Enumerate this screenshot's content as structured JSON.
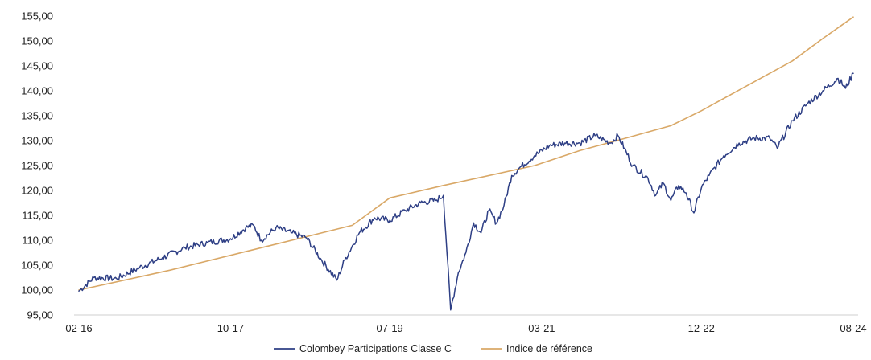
{
  "chart_data": {
    "type": "line",
    "title": "",
    "xlabel": "",
    "ylabel": "",
    "x_range": [
      "02-16",
      "08-24"
    ],
    "x_ticks": [
      "02-16",
      "10-17",
      "07-19",
      "03-21",
      "12-22",
      "08-24"
    ],
    "ylim": [
      95,
      155
    ],
    "y_ticks": [
      "95,00",
      "100,00",
      "105,00",
      "110,00",
      "115,00",
      "120,00",
      "125,00",
      "130,00",
      "135,00",
      "140,00",
      "145,00",
      "150,00",
      "155,00"
    ],
    "grid": false,
    "legend_position": "bottom-center",
    "series": [
      {
        "name": "Colombey Participations Classe C",
        "color": "#2e3f85",
        "x": [
          "2016-02",
          "2016-04",
          "2016-07",
          "2016-10",
          "2017-01",
          "2017-04",
          "2017-07",
          "2017-10",
          "2017-12",
          "2018-01",
          "2018-02",
          "2018-04",
          "2018-06",
          "2018-08",
          "2018-10",
          "2018-12",
          "2019-01",
          "2019-03",
          "2019-05",
          "2019-07",
          "2019-09",
          "2019-11",
          "2020-01",
          "2020-02",
          "2020-03",
          "2020-04",
          "2020-05",
          "2020-06",
          "2020-07",
          "2020-08",
          "2020-09",
          "2020-10",
          "2020-11",
          "2020-12",
          "2021-02",
          "2021-04",
          "2021-06",
          "2021-08",
          "2021-10",
          "2021-12",
          "2022-01",
          "2022-03",
          "2022-05",
          "2022-06",
          "2022-07",
          "2022-08",
          "2022-09",
          "2022-10",
          "2022-11",
          "2022-12",
          "2023-01",
          "2023-03",
          "2023-05",
          "2023-07",
          "2023-09",
          "2023-10",
          "2023-12",
          "2024-02",
          "2024-04",
          "2024-06",
          "2024-07",
          "2024-08"
        ],
        "values": [
          99.8,
          102.5,
          102.3,
          104.5,
          106.5,
          108.5,
          109.5,
          110.3,
          112.5,
          113.0,
          110.0,
          112.5,
          111.5,
          110.5,
          106.0,
          102.0,
          106.0,
          111.5,
          114.5,
          114.0,
          116.0,
          117.5,
          118.0,
          119.0,
          96.0,
          103.5,
          107.5,
          113.5,
          111.5,
          116.0,
          113.5,
          117.0,
          123.0,
          124.5,
          127.0,
          129.0,
          129.5,
          129.5,
          131.0,
          129.5,
          131.0,
          125.0,
          122.5,
          119.0,
          121.5,
          118.0,
          121.0,
          119.5,
          115.5,
          120.5,
          123.0,
          127.0,
          129.5,
          130.5,
          130.5,
          128.5,
          134.0,
          137.5,
          140.0,
          142.5,
          140.5,
          143.5
        ]
      },
      {
        "name": "Indice de référence",
        "color": "#d9a867",
        "x": [
          "2016-02",
          "2017-02",
          "2018-02",
          "2019-02",
          "2019-07",
          "2020-02",
          "2021-02",
          "2021-08",
          "2022-02",
          "2022-08",
          "2022-12",
          "2023-06",
          "2023-12",
          "2024-04",
          "2024-08"
        ],
        "values": [
          100.0,
          104.0,
          108.5,
          113.0,
          118.5,
          121.0,
          125.0,
          128.0,
          130.5,
          133.0,
          136.0,
          141.0,
          146.0,
          150.5,
          154.8
        ]
      }
    ]
  }
}
